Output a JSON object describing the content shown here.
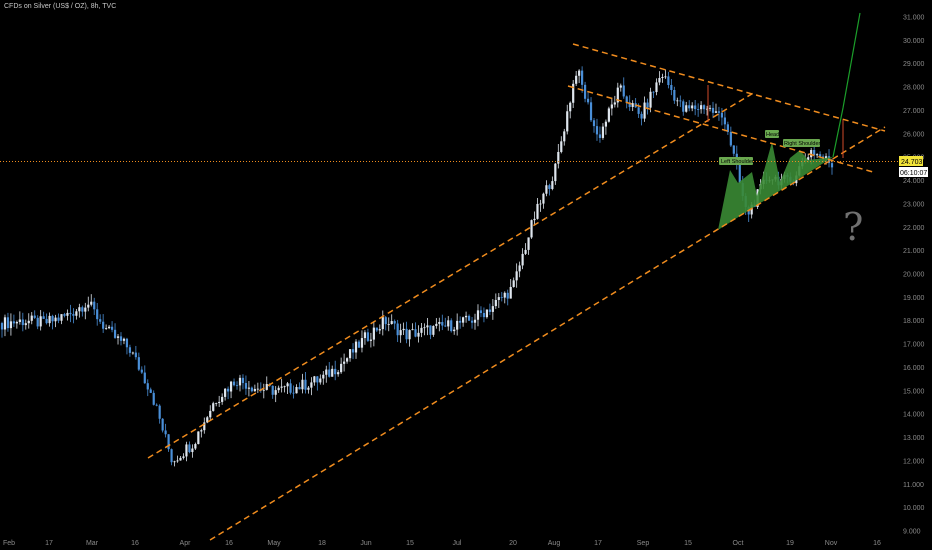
{
  "header": {
    "symbol_line": "CFDs on Silver (US$ / OZ), 8h, TVC"
  },
  "colors": {
    "background": "#000000",
    "candle": "#4a8fd8",
    "candle_light": "#dfe6ee",
    "trendline": "#f08c1e",
    "pattern_fill": "#3a8a34",
    "label_bg": "#6aa84f",
    "projection": "#1b9e2a",
    "price_tag": "#f2e43a",
    "timer_tag": "#ffffff"
  },
  "chart_data": {
    "type": "candlestick",
    "y_axis": {
      "range": [
        8.8,
        31.4
      ],
      "ticks": [
        "9.000",
        "10.000",
        "11.000",
        "12.000",
        "13.000",
        "14.000",
        "15.000",
        "16.000",
        "17.000",
        "18.000",
        "19.000",
        "20.000",
        "21.000",
        "22.000",
        "23.000",
        "24.000",
        "25.000",
        "26.000",
        "27.000",
        "28.000",
        "29.000",
        "30.000",
        "31.000"
      ]
    },
    "x_axis": {
      "ticks": [
        "Feb",
        "17",
        "Mar",
        "16",
        "Apr",
        "16",
        "May",
        "18",
        "Jun",
        "15",
        "Jul",
        "20",
        "Aug",
        "17",
        "Sep",
        "15",
        "Oct",
        "19",
        "Nov",
        "16"
      ]
    },
    "price_path": [
      [
        "Feb",
        17.9
      ],
      [
        "Feb",
        18.0
      ],
      [
        "17",
        17.9
      ],
      [
        "17",
        18.2
      ],
      [
        "Mar",
        18.8
      ],
      [
        "Mar",
        17.5
      ],
      [
        "Mar",
        16.8
      ],
      [
        "16",
        15.0
      ],
      [
        "16",
        12.0
      ],
      [
        "16",
        12.8
      ],
      [
        "Apr",
        14.6
      ],
      [
        "Apr",
        15.5
      ],
      [
        "16",
        15.1
      ],
      [
        "16",
        15.0
      ],
      [
        "May",
        15.2
      ],
      [
        "May",
        15.5
      ],
      [
        "18",
        16.2
      ],
      [
        "18",
        17.2
      ],
      [
        "Jun",
        18.0
      ],
      [
        "Jun",
        17.4
      ],
      [
        "15",
        17.6
      ],
      [
        "15",
        17.8
      ],
      [
        "Jul",
        18.0
      ],
      [
        "Jul",
        18.6
      ],
      [
        "20",
        19.4
      ],
      [
        "20",
        22.4
      ],
      [
        "Aug",
        24.5
      ],
      [
        "Aug",
        28.8
      ],
      [
        "Aug",
        25.8
      ],
      [
        "17",
        27.9
      ],
      [
        "17",
        26.7
      ],
      [
        "Sep",
        28.6
      ],
      [
        "Sep",
        27.0
      ],
      [
        "15",
        27.2
      ],
      [
        "15",
        26.6
      ],
      [
        "Oct",
        22.5
      ],
      [
        "Oct",
        24.2
      ],
      [
        "Oct",
        23.9
      ],
      [
        "19",
        25.3
      ],
      [
        "19",
        24.7
      ]
    ],
    "last_price": "24.703",
    "countdown": "06:10:07",
    "annotations": [
      "Left Shoulder",
      "Head",
      "Right Shoulder",
      "?"
    ]
  }
}
